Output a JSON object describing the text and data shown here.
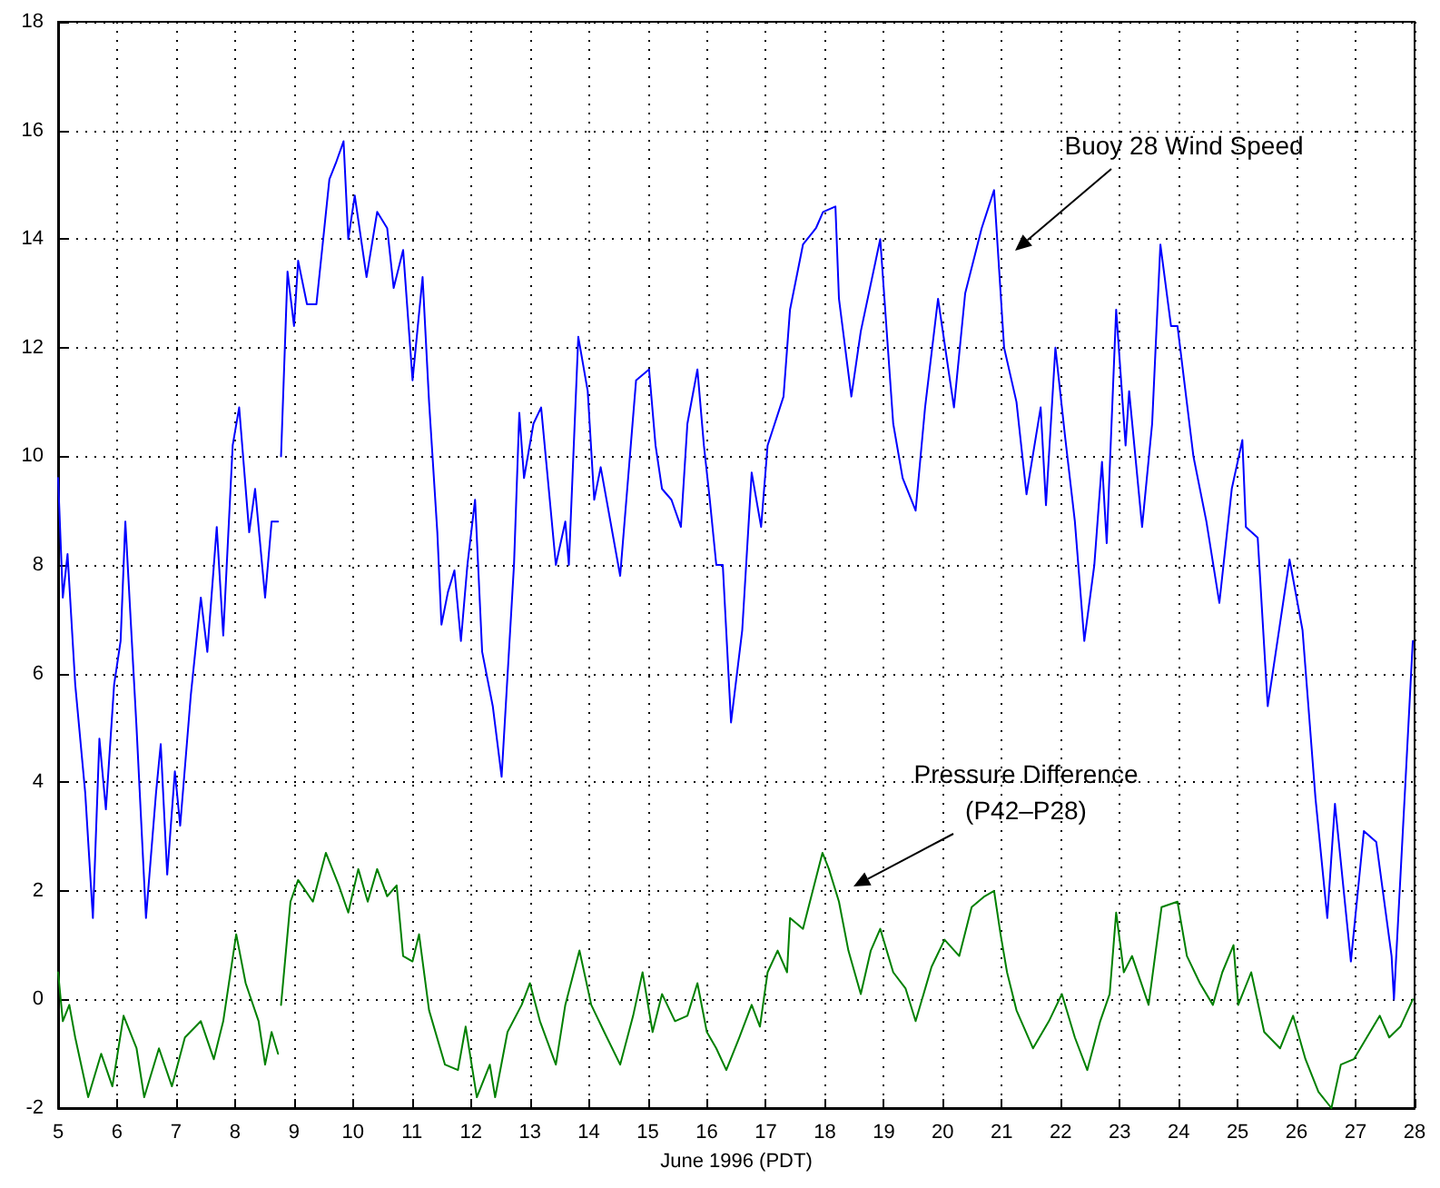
{
  "chart_data": {
    "type": "line",
    "xlabel": "June 1996 (PDT)",
    "xlim": [
      5,
      28
    ],
    "xticks": [
      5,
      6,
      7,
      8,
      9,
      10,
      11,
      12,
      13,
      14,
      15,
      16,
      17,
      18,
      19,
      20,
      21,
      22,
      23,
      24,
      25,
      26,
      27,
      28
    ],
    "ylim": [
      -2,
      18
    ],
    "yticks": [
      -2,
      0,
      2,
      4,
      6,
      8,
      10,
      12,
      14,
      16,
      18
    ],
    "grid": true,
    "marker": "none",
    "line_style": "solid",
    "annotations": [
      "Buoy 28 Wind Speed",
      "Pressure Difference\n(P42–P28)"
    ],
    "series": [
      {
        "color": "#0000ff",
        "x": [
          5.0,
          5.08,
          5.16,
          5.29,
          5.46,
          5.59,
          5.7,
          5.81,
          5.95,
          6.06,
          6.14,
          6.33,
          6.49,
          6.66,
          6.74,
          6.85,
          6.98,
          7.07,
          7.25,
          7.42,
          7.53,
          7.69,
          7.8,
          7.96,
          8.07,
          8.24,
          8.34,
          8.51,
          8.62,
          8.73,
          8.75,
          8.78,
          8.89,
          9.0,
          9.07,
          9.22,
          9.38,
          9.6,
          9.71,
          9.84,
          9.92,
          10.03,
          10.23,
          10.41,
          10.58,
          10.69,
          10.85,
          11.01,
          11.18,
          11.29,
          11.43,
          11.5,
          11.61,
          11.72,
          11.83,
          11.94,
          12.07,
          12.19,
          12.37,
          12.52,
          12.73,
          12.82,
          12.9,
          13.06,
          13.19,
          13.44,
          13.6,
          13.66,
          13.82,
          13.98,
          14.09,
          14.2,
          14.53,
          14.8,
          15.02,
          15.13,
          15.24,
          15.4,
          15.56,
          15.67,
          15.84,
          15.95,
          16.05,
          16.16,
          16.27,
          16.41,
          16.6,
          16.76,
          16.92,
          17.03,
          17.3,
          17.41,
          17.63,
          17.85,
          17.97,
          18.18,
          18.24,
          18.45,
          18.61,
          18.94,
          19.16,
          19.32,
          19.54,
          19.7,
          19.92,
          20.19,
          20.38,
          20.66,
          20.87,
          21.04,
          21.25,
          21.42,
          21.66,
          21.75,
          21.91,
          22.07,
          22.24,
          22.4,
          22.57,
          22.7,
          22.78,
          22.94,
          23.1,
          23.16,
          23.38,
          23.55,
          23.69,
          23.87,
          23.98,
          24.25,
          24.47,
          24.69,
          24.9,
          25.08,
          25.14,
          25.34,
          25.51,
          25.62,
          25.88,
          26.1,
          26.32,
          26.52,
          26.65,
          26.92,
          27.14,
          27.35,
          27.61,
          27.65,
          27.84,
          27.97
        ],
        "values": [
          9.6,
          7.4,
          8.2,
          5.8,
          3.8,
          1.5,
          4.8,
          3.5,
          5.8,
          6.6,
          8.8,
          5.0,
          1.5,
          3.8,
          4.7,
          2.3,
          4.2,
          3.2,
          5.6,
          7.4,
          6.4,
          8.7,
          6.7,
          10.2,
          10.9,
          8.6,
          9.4,
          7.4,
          8.8,
          8.8,
          null,
          10.0,
          13.4,
          12.4,
          13.6,
          12.8,
          12.8,
          15.1,
          15.4,
          15.8,
          14.0,
          14.8,
          13.3,
          14.5,
          14.2,
          13.1,
          13.8,
          11.4,
          13.3,
          11.0,
          8.6,
          6.9,
          7.5,
          7.9,
          6.6,
          8.0,
          9.2,
          6.4,
          5.4,
          4.1,
          8.0,
          10.8,
          9.6,
          10.6,
          10.9,
          8.0,
          8.8,
          8.0,
          12.2,
          11.2,
          9.2,
          9.8,
          7.8,
          11.4,
          11.6,
          10.2,
          9.4,
          9.2,
          8.7,
          10.6,
          11.6,
          10.2,
          9.2,
          8.0,
          8.0,
          5.1,
          6.8,
          9.7,
          8.7,
          10.2,
          11.1,
          12.7,
          13.9,
          14.2,
          14.5,
          14.6,
          12.9,
          11.1,
          12.3,
          14.0,
          10.6,
          9.6,
          9.0,
          10.9,
          12.9,
          10.9,
          13.0,
          14.2,
          14.9,
          12.0,
          11.0,
          9.3,
          10.9,
          9.1,
          12.0,
          10.4,
          8.8,
          6.6,
          8.0,
          9.9,
          8.4,
          12.7,
          10.2,
          11.2,
          8.7,
          10.6,
          13.9,
          12.4,
          12.4,
          10.0,
          8.8,
          7.3,
          9.4,
          10.3,
          8.7,
          8.5,
          5.4,
          6.2,
          8.1,
          6.8,
          3.7,
          1.5,
          3.6,
          0.7,
          3.1,
          2.9,
          0.8,
          0.0,
          3.9,
          6.6
        ]
      },
      {
        "color": "#008000",
        "x": [
          5.0,
          5.08,
          5.19,
          5.29,
          5.51,
          5.73,
          5.92,
          6.11,
          6.33,
          6.46,
          6.71,
          6.93,
          7.15,
          7.42,
          7.64,
          7.8,
          8.02,
          8.18,
          8.4,
          8.51,
          8.62,
          8.73,
          8.75,
          8.78,
          8.94,
          9.07,
          9.32,
          9.54,
          9.76,
          9.92,
          10.09,
          10.25,
          10.41,
          10.58,
          10.74,
          10.85,
          11.01,
          11.12,
          11.29,
          11.56,
          11.78,
          11.91,
          12.1,
          12.32,
          12.41,
          12.62,
          12.86,
          13.0,
          13.17,
          13.44,
          13.6,
          13.84,
          14.04,
          14.26,
          14.53,
          14.75,
          14.91,
          15.08,
          15.24,
          15.46,
          15.67,
          15.84,
          16.0,
          16.16,
          16.33,
          16.55,
          16.76,
          16.9,
          17.03,
          17.2,
          17.36,
          17.41,
          17.63,
          17.96,
          18.07,
          18.24,
          18.4,
          18.61,
          18.78,
          18.94,
          19.16,
          19.37,
          19.54,
          19.81,
          20.03,
          20.28,
          20.49,
          20.71,
          20.87,
          20.98,
          21.09,
          21.25,
          21.53,
          21.8,
          22.02,
          22.24,
          22.45,
          22.67,
          22.83,
          22.94,
          23.07,
          23.21,
          23.49,
          23.71,
          23.98,
          24.14,
          24.36,
          24.58,
          24.74,
          24.93,
          25.01,
          25.23,
          25.45,
          25.72,
          25.94,
          26.15,
          26.37,
          26.59,
          26.75,
          26.97,
          27.19,
          27.41,
          27.57,
          27.76,
          27.97
        ],
        "values": [
          0.5,
          -0.4,
          -0.1,
          -0.7,
          -1.8,
          -1.0,
          -1.6,
          -0.3,
          -0.9,
          -1.8,
          -0.9,
          -1.6,
          -0.7,
          -0.4,
          -1.1,
          -0.4,
          1.2,
          0.3,
          -0.4,
          -1.2,
          -0.6,
          -1.0,
          null,
          -0.1,
          1.8,
          2.2,
          1.8,
          2.7,
          2.1,
          1.6,
          2.4,
          1.8,
          2.4,
          1.9,
          2.1,
          0.8,
          0.7,
          1.2,
          -0.2,
          -1.2,
          -1.3,
          -0.5,
          -1.8,
          -1.2,
          -1.8,
          -0.6,
          -0.1,
          0.3,
          -0.4,
          -1.2,
          -0.1,
          0.9,
          -0.1,
          -0.6,
          -1.2,
          -0.3,
          0.5,
          -0.6,
          0.1,
          -0.4,
          -0.3,
          0.3,
          -0.6,
          -0.9,
          -1.3,
          -0.7,
          -0.1,
          -0.5,
          0.5,
          0.9,
          0.5,
          1.5,
          1.3,
          2.7,
          2.4,
          1.8,
          0.9,
          0.1,
          0.9,
          1.3,
          0.5,
          0.2,
          -0.4,
          0.6,
          1.1,
          0.8,
          1.7,
          1.9,
          2.0,
          1.2,
          0.5,
          -0.2,
          -0.9,
          -0.4,
          0.1,
          -0.7,
          -1.3,
          -0.4,
          0.1,
          1.6,
          0.5,
          0.8,
          -0.1,
          1.7,
          1.8,
          0.8,
          0.3,
          -0.1,
          0.5,
          1.0,
          -0.1,
          0.5,
          -0.6,
          -0.9,
          -0.3,
          -1.1,
          -1.7,
          -2.0,
          -1.2,
          -1.1,
          -0.7,
          -0.3,
          -0.7,
          -0.5,
          0.0
        ]
      }
    ]
  }
}
